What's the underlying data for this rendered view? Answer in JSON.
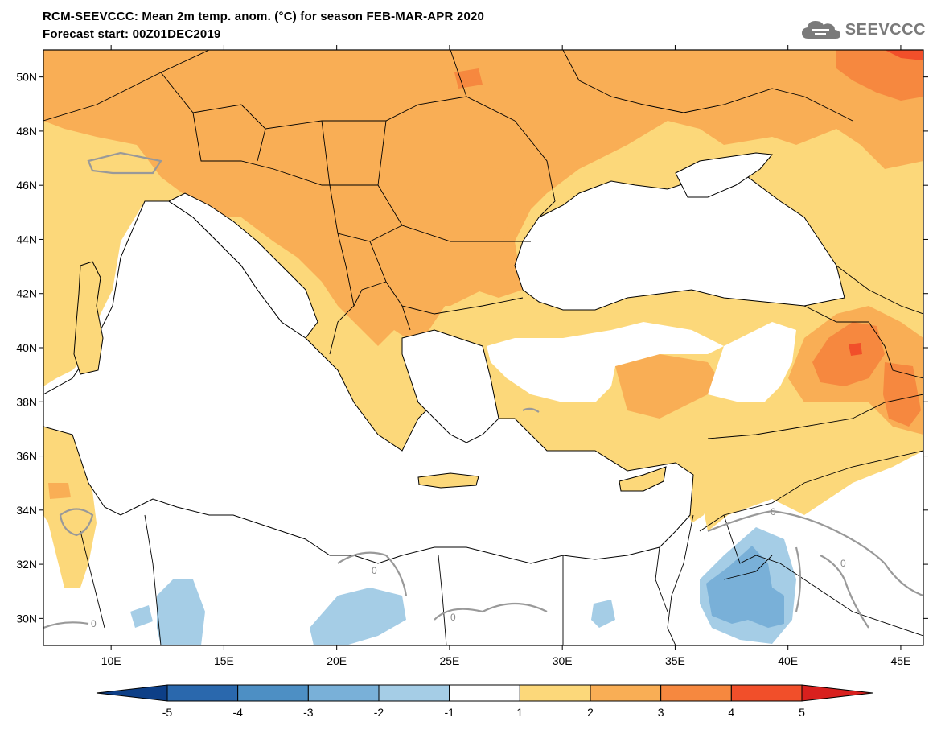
{
  "header": {
    "title_line1": "RCM-SEEVCCC: Mean 2m temp. anom. (°C) for season FEB-MAR-APR 2020",
    "title_line2": "Forecast start: 00Z01DEC2019"
  },
  "logo": {
    "text": "SEEVCCC",
    "icon": "cloud-icon",
    "color": "#7a7a7a"
  },
  "map": {
    "lon_ticks": [
      "10E",
      "15E",
      "20E",
      "25E",
      "30E",
      "35E",
      "40E",
      "45E"
    ],
    "lat_ticks": [
      "50N",
      "48N",
      "46N",
      "44N",
      "42N",
      "40N",
      "38N",
      "36N",
      "34N",
      "32N",
      "30N"
    ],
    "contour_labels": [
      "0",
      "0",
      "0",
      "0",
      "0"
    ]
  },
  "colorbar": {
    "labels": [
      "-5",
      "-4",
      "-3",
      "-2",
      "-1",
      "1",
      "2",
      "3",
      "4",
      "5"
    ],
    "colors": [
      "#0d3f87",
      "#2a68ad",
      "#4d8fc4",
      "#79b0d8",
      "#a5cde6",
      "#ffffff",
      "#fcd87a",
      "#f9ae55",
      "#f6883f",
      "#f14f2a",
      "#d8201e"
    ]
  }
}
